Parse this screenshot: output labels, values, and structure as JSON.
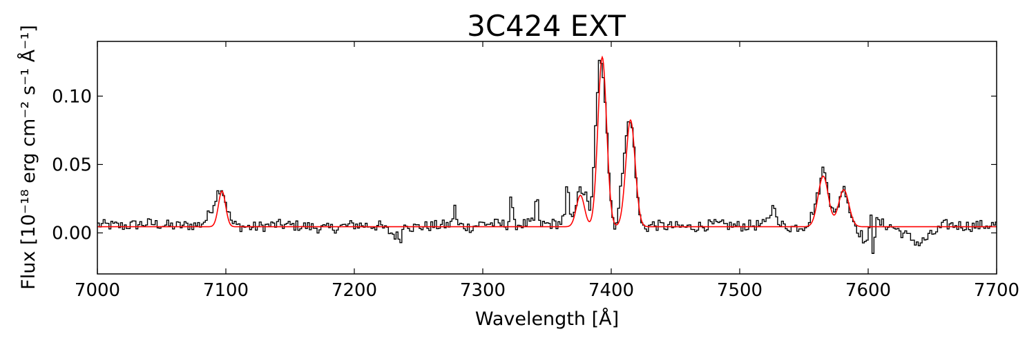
{
  "chart_data": {
    "type": "line",
    "title": "3C424 EXT",
    "xlabel": "Wavelength [Å]",
    "ylabel": "Flux [10⁻¹⁸ erg cm⁻² s⁻¹ Å⁻¹]",
    "xlim": [
      7000,
      7700
    ],
    "ylim": [
      -0.03,
      0.14
    ],
    "xticks": [
      7000,
      7100,
      7200,
      7300,
      7400,
      7500,
      7600,
      7700
    ],
    "yticks": [
      0.0,
      0.05,
      0.1
    ],
    "ytick_labels": [
      "0.00",
      "0.05",
      "0.10"
    ],
    "grid": false,
    "colors": {
      "observed": "#000000",
      "model": "#ff0000"
    },
    "series": [
      {
        "style": "steps",
        "color": "#000000",
        "x": [
          7000,
          7020,
          7040,
          7060,
          7080,
          7085,
          7090,
          7093,
          7096,
          7098,
          7100,
          7103,
          7106,
          7110,
          7120,
          7140,
          7160,
          7180,
          7200,
          7220,
          7236,
          7240,
          7244,
          7260,
          7276,
          7278,
          7280,
          7290,
          7300,
          7320,
          7322,
          7324,
          7340,
          7342,
          7344,
          7360,
          7364,
          7366,
          7368,
          7372,
          7376,
          7380,
          7384,
          7388,
          7391,
          7393,
          7396,
          7399,
          7402,
          7405,
          7408,
          7411,
          7414,
          7416,
          7418,
          7421,
          7424,
          7428,
          7432,
          7440,
          7460,
          7480,
          7500,
          7520,
          7528,
          7530,
          7532,
          7540,
          7550,
          7555,
          7560,
          7563,
          7565,
          7568,
          7571,
          7574,
          7577,
          7580,
          7583,
          7586,
          7590,
          7600,
          7602,
          7604,
          7606,
          7620,
          7640,
          7660,
          7680,
          7700
        ],
        "y": [
          0.006,
          0.005,
          0.007,
          0.005,
          0.006,
          0.01,
          0.02,
          0.028,
          0.034,
          0.03,
          0.022,
          0.012,
          0.006,
          0.005,
          0.004,
          0.006,
          0.005,
          0.003,
          0.006,
          0.005,
          -0.004,
          0.009,
          0.004,
          0.005,
          0.006,
          0.022,
          0.006,
          0.004,
          0.007,
          0.006,
          0.03,
          0.006,
          0.007,
          0.033,
          0.006,
          0.007,
          0.012,
          0.041,
          0.01,
          0.02,
          0.032,
          0.028,
          0.012,
          0.08,
          0.128,
          0.125,
          0.09,
          0.03,
          0.005,
          0.01,
          0.038,
          0.07,
          0.082,
          0.078,
          0.06,
          0.02,
          0.005,
          0.004,
          0.006,
          0.005,
          0.004,
          0.006,
          0.005,
          0.006,
          0.023,
          0.003,
          0.006,
          0.004,
          0.005,
          0.01,
          0.025,
          0.037,
          0.048,
          0.04,
          0.02,
          0.012,
          0.022,
          0.033,
          0.03,
          0.015,
          0.006,
          -0.01,
          0.02,
          -0.016,
          0.008,
          0.004,
          -0.008,
          0.006,
          0.005,
          0.006
        ]
      },
      {
        "style": "model",
        "color": "#ff0000",
        "baseline": 0.0045,
        "components": [
          {
            "center": 7097,
            "amp": 0.026,
            "sigma": 2.8
          },
          {
            "center": 7376,
            "amp": 0.023,
            "sigma": 3.2
          },
          {
            "center": 7393,
            "amp": 0.124,
            "sigma": 3.4
          },
          {
            "center": 7415,
            "amp": 0.078,
            "sigma": 3.6
          },
          {
            "center": 7565,
            "amp": 0.037,
            "sigma": 4.0
          },
          {
            "center": 7581,
            "amp": 0.027,
            "sigma": 4.0
          }
        ]
      }
    ]
  }
}
